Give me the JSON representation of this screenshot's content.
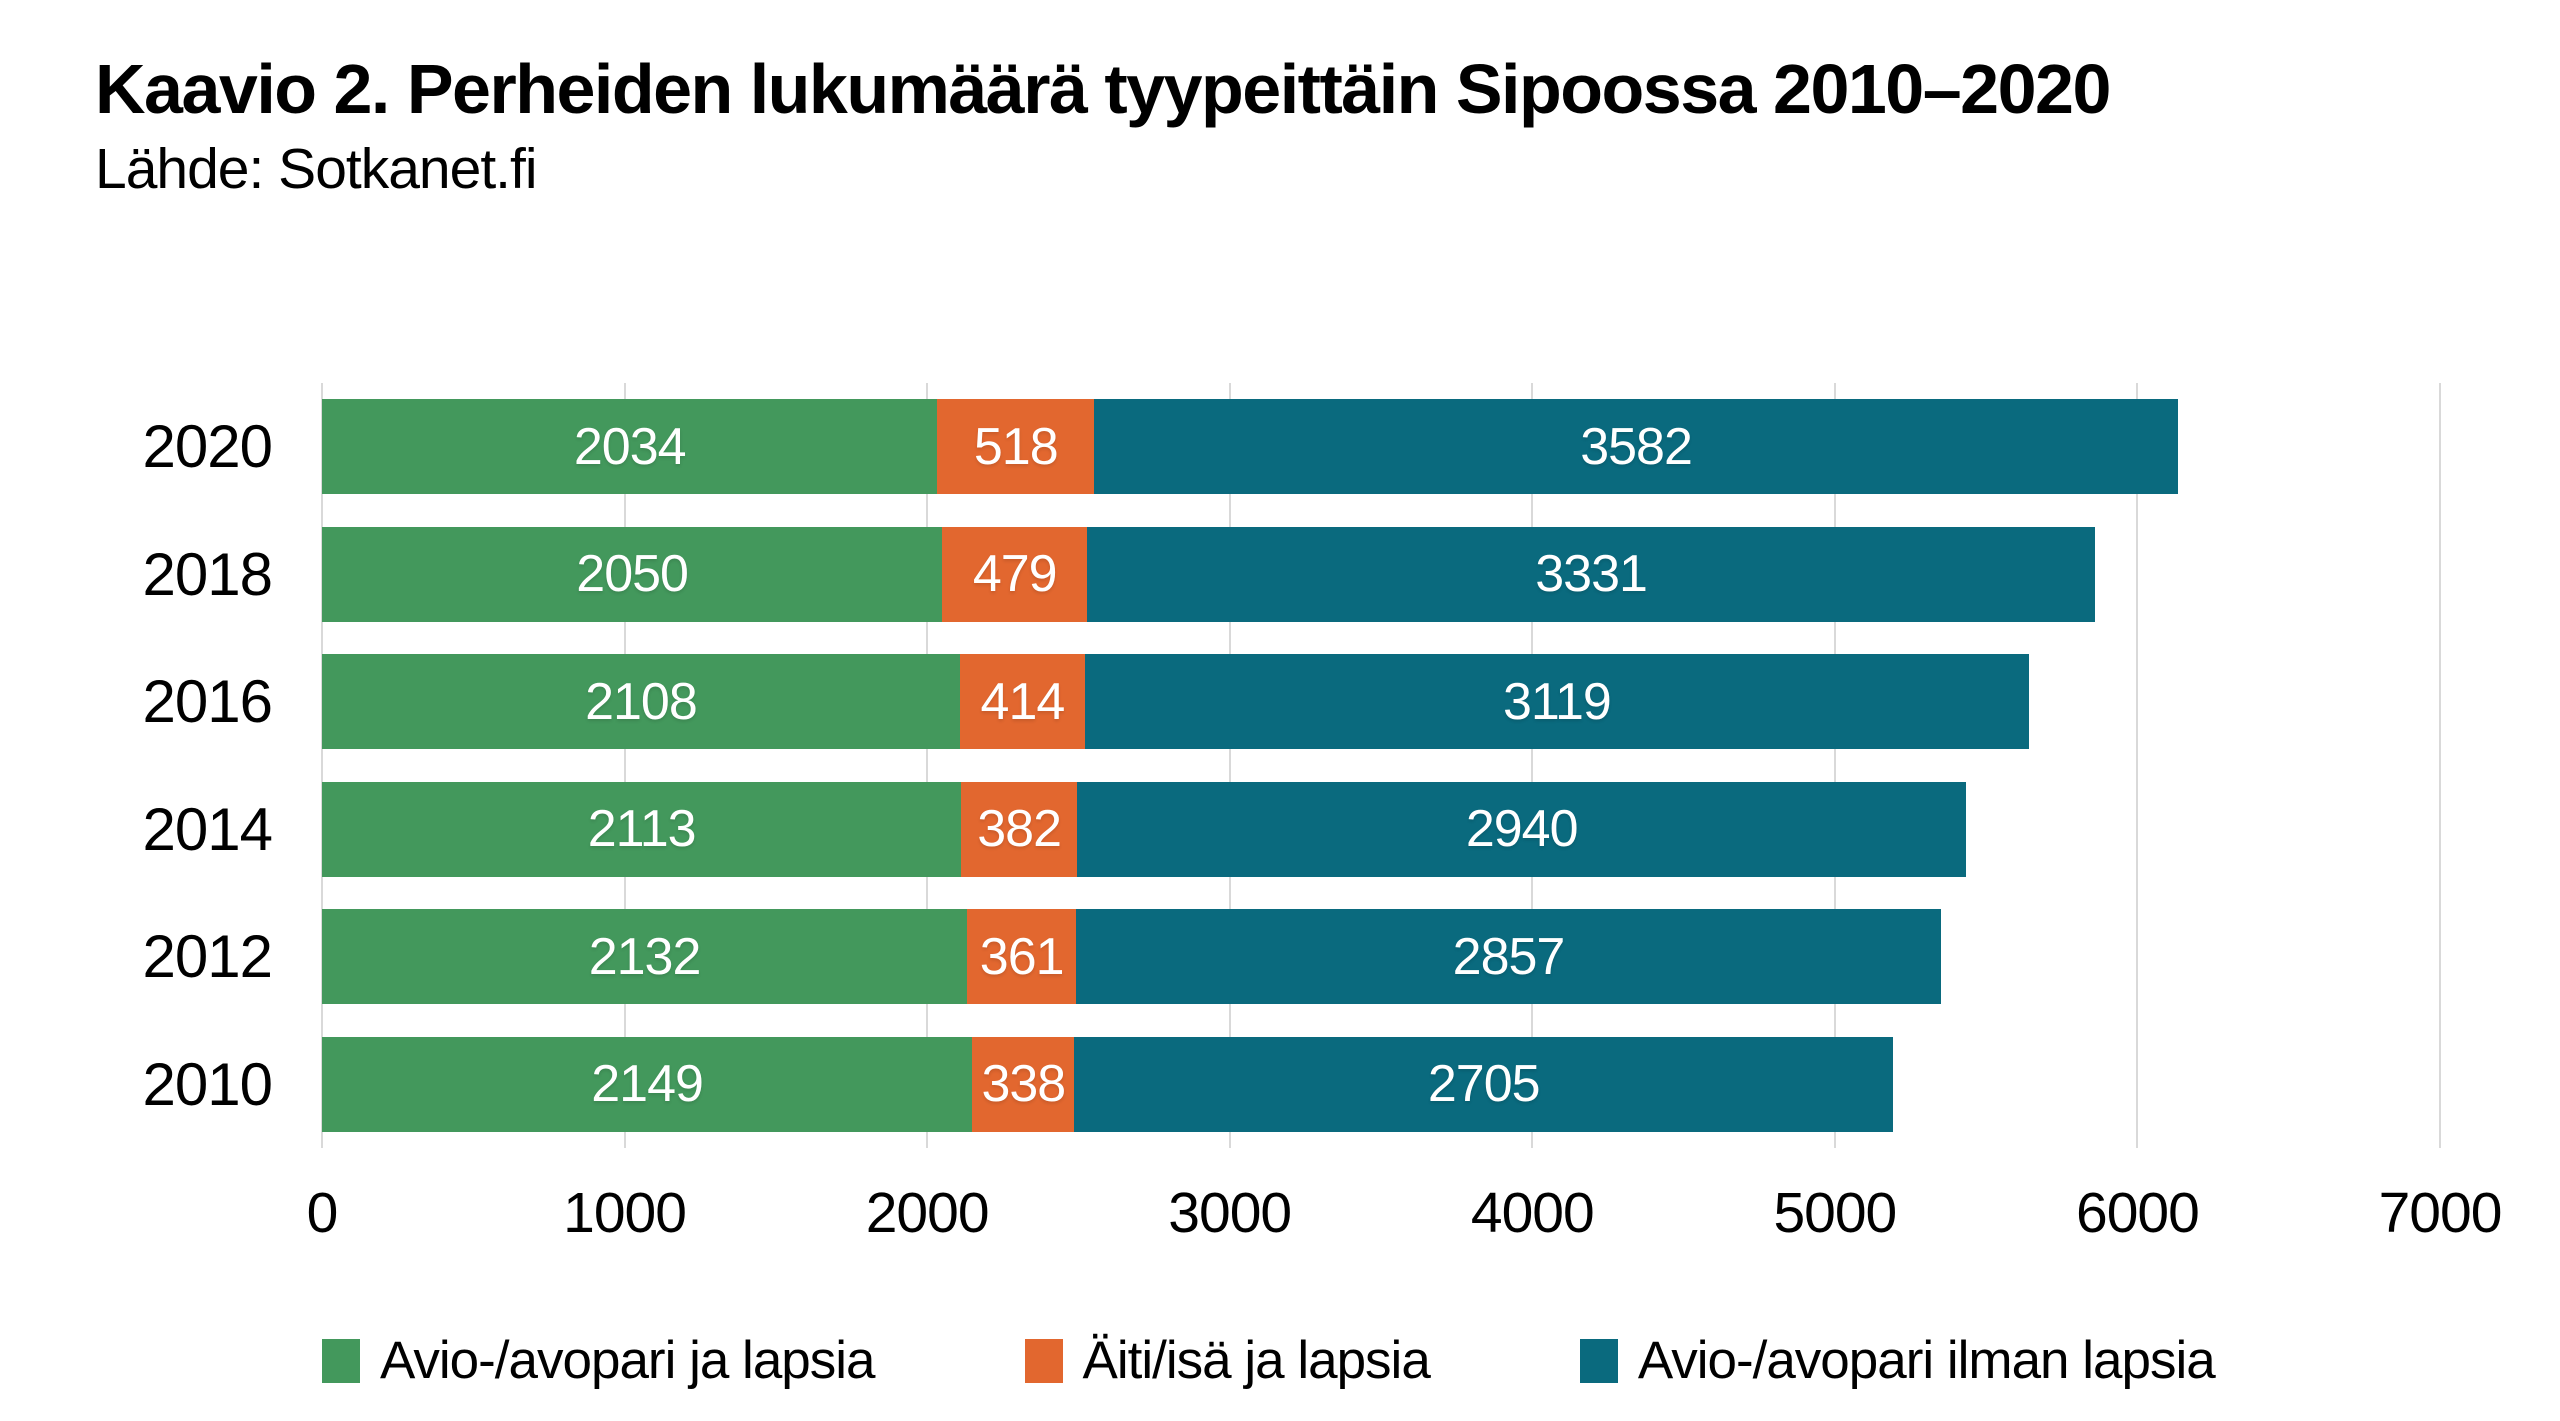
{
  "chart_data": {
    "type": "bar",
    "orientation": "horizontal",
    "stacked": true,
    "title": "Kaavio 2. Perheiden lukumäärä tyypeittäin Sipoossa 2010–2020",
    "source": "Lähde: Sotkanet.fi",
    "categories": [
      "2020",
      "2018",
      "2016",
      "2014",
      "2012",
      "2010"
    ],
    "series": [
      {
        "name": "Avio-/avopari ja lapsia",
        "color": "#43985c",
        "values": [
          2034,
          2050,
          2108,
          2113,
          2132,
          2149
        ]
      },
      {
        "name": "Äiti/isä ja lapsia",
        "color": "#e2672f",
        "values": [
          518,
          479,
          414,
          382,
          361,
          338
        ]
      },
      {
        "name": "Avio-/avopari ilman lapsia",
        "color": "#0a6a7e",
        "values": [
          3582,
          3331,
          3119,
          2940,
          2857,
          2705
        ]
      }
    ],
    "totals": [
      6134,
      5860,
      5641,
      5435,
      5350,
      5192
    ],
    "xlim": [
      0,
      7000
    ],
    "x_ticks": [
      0,
      1000,
      2000,
      3000,
      4000,
      5000,
      6000,
      7000
    ],
    "grid": true,
    "legend_position": "bottom",
    "colors": {
      "grid_line": "#d9d9d9",
      "bar_value_text": "#ffffff",
      "axis_text": "#000000",
      "background": "#ffffff"
    }
  }
}
